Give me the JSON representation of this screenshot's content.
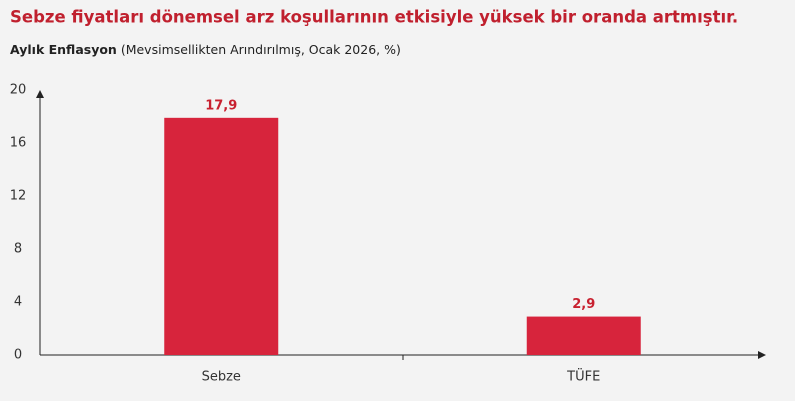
{
  "chart_data": {
    "type": "bar",
    "title": "Sebze fiyatları dönemsel arz koşullarının etkisiyle yüksek bir oranda artmıştır.",
    "subtitle": "Aylık Enflasyon",
    "subtitle_note": "(Mevsimsellikten Arındırılmış, Ocak 2026, %)",
    "categories": [
      "Sebze",
      "TÜFE"
    ],
    "values": [
      17.9,
      2.9
    ],
    "value_labels": [
      "17,9",
      "2,9"
    ],
    "color": "#d7243c",
    "ylim": [
      0,
      20
    ],
    "yticks": [
      0,
      4,
      8,
      12,
      16,
      20
    ],
    "grid": false
  }
}
